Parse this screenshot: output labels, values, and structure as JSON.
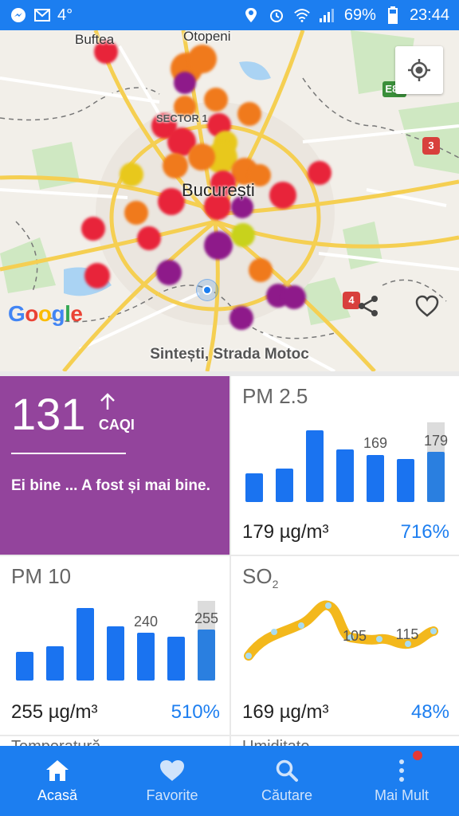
{
  "status_bar": {
    "left_icons": [
      "messenger-icon",
      "gmail-icon"
    ],
    "temperature": "4°",
    "right_icons": [
      "location-icon",
      "alarm-icon",
      "wifi-icon",
      "signal-icon",
      "battery-icon"
    ],
    "battery": "69%",
    "time": "23:44"
  },
  "map": {
    "labels": {
      "buftea": "Buftea",
      "otopeni": "Otopeni",
      "sector": "SECTOR 1",
      "city": "București",
      "e85": "E85",
      "r3": "3",
      "r4": "4"
    },
    "google": "Google",
    "street": "Sintești, Strada Motoc",
    "dot_colors": {
      "purple": "#8e1a8a",
      "red": "#e8243a",
      "orange": "#f07a1c",
      "yellow": "#e8c81c",
      "lime": "#c8d21c"
    }
  },
  "caqi": {
    "value": "131",
    "unit": "CAQI",
    "trend_icon": "arrow-up-icon",
    "message": "Ei bine ... A fost și mai bine.",
    "color": "#93449c"
  },
  "pm25": {
    "title": "PM 2.5",
    "value": "179 µg/m³",
    "percent": "716%",
    "labels": [
      "169",
      "179"
    ],
    "bars": [
      40,
      46,
      100,
      74,
      66,
      60,
      70
    ]
  },
  "pm10": {
    "title": "PM 10",
    "value": "255 µg/m³",
    "percent": "510%",
    "labels": [
      "240",
      "255"
    ],
    "bars": [
      38,
      46,
      100,
      74,
      66,
      60,
      70
    ]
  },
  "so2": {
    "title": "SO",
    "subscript": "2",
    "value": "169 µg/m³",
    "percent": "48%",
    "labels": [
      "105",
      "115"
    ]
  },
  "peek": {
    "left": "Temperatură",
    "right": "Umiditate"
  },
  "nav": [
    {
      "label": "Acasă",
      "icon": "home-icon"
    },
    {
      "label": "Favorite",
      "icon": "heart-icon"
    },
    {
      "label": "Căutare",
      "icon": "search-icon"
    },
    {
      "label": "Mai Mult",
      "icon": "more-vert-icon"
    }
  ]
}
